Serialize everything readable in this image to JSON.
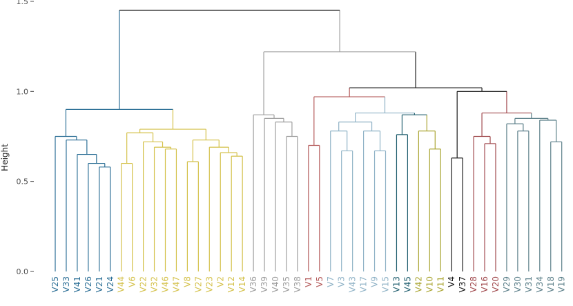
{
  "chart_data": {
    "type": "dendrogram",
    "title": "",
    "xlabel": "",
    "ylabel": "Height",
    "ylim": [
      0,
      1.5
    ],
    "yticks": [
      0.0,
      0.5,
      1.0,
      1.5
    ],
    "ytick_labels": [
      "0.0",
      "0.5",
      "1.0",
      "1.5"
    ],
    "grid": false,
    "leaves": [
      {
        "label": "V25",
        "group": "blue"
      },
      {
        "label": "V33",
        "group": "blue"
      },
      {
        "label": "V41",
        "group": "blue"
      },
      {
        "label": "V26",
        "group": "blue"
      },
      {
        "label": "V21",
        "group": "blue"
      },
      {
        "label": "V24",
        "group": "blue"
      },
      {
        "label": "V44",
        "group": "yellow"
      },
      {
        "label": "V6",
        "group": "yellow"
      },
      {
        "label": "V22",
        "group": "yellow"
      },
      {
        "label": "V32",
        "group": "yellow"
      },
      {
        "label": "V46",
        "group": "yellow"
      },
      {
        "label": "V47",
        "group": "yellow"
      },
      {
        "label": "V8",
        "group": "yellow"
      },
      {
        "label": "V27",
        "group": "yellow"
      },
      {
        "label": "V23",
        "group": "yellow"
      },
      {
        "label": "V2",
        "group": "yellow"
      },
      {
        "label": "V12",
        "group": "yellow"
      },
      {
        "label": "V14",
        "group": "yellow"
      },
      {
        "label": "V36",
        "group": "grey"
      },
      {
        "label": "V39",
        "group": "grey"
      },
      {
        "label": "V40",
        "group": "grey"
      },
      {
        "label": "V35",
        "group": "grey"
      },
      {
        "label": "V38",
        "group": "grey"
      },
      {
        "label": "V1",
        "group": "red"
      },
      {
        "label": "V5",
        "group": "red"
      },
      {
        "label": "V7",
        "group": "lightblue"
      },
      {
        "label": "V3",
        "group": "lightblue"
      },
      {
        "label": "V43",
        "group": "lightblue"
      },
      {
        "label": "V17",
        "group": "lightblue"
      },
      {
        "label": "V9",
        "group": "lightblue"
      },
      {
        "label": "V15",
        "group": "lightblue"
      },
      {
        "label": "V13",
        "group": "teal"
      },
      {
        "label": "V45",
        "group": "teal"
      },
      {
        "label": "V42",
        "group": "olive"
      },
      {
        "label": "V10",
        "group": "olive"
      },
      {
        "label": "V11",
        "group": "olive"
      },
      {
        "label": "V4",
        "group": "black"
      },
      {
        "label": "V37",
        "group": "black"
      },
      {
        "label": "V28",
        "group": "brownred"
      },
      {
        "label": "V16",
        "group": "brownred"
      },
      {
        "label": "V20",
        "group": "brownred"
      },
      {
        "label": "V29",
        "group": "slate"
      },
      {
        "label": "V30",
        "group": "slate"
      },
      {
        "label": "V31",
        "group": "slate"
      },
      {
        "label": "V34",
        "group": "slate"
      },
      {
        "label": "V18",
        "group": "slate"
      },
      {
        "label": "V19",
        "group": "slate"
      }
    ],
    "merges": [
      {
        "id": "b1",
        "left": "V21",
        "right": "V24",
        "height": 0.58,
        "color": "blue"
      },
      {
        "id": "b2",
        "left": "V26",
        "right": "b1",
        "height": 0.6,
        "color": "blue"
      },
      {
        "id": "b3",
        "left": "V41",
        "right": "b2",
        "height": 0.65,
        "color": "blue"
      },
      {
        "id": "b4",
        "left": "V33",
        "right": "b3",
        "height": 0.73,
        "color": "blue"
      },
      {
        "id": "b5",
        "left": "V25",
        "right": "b4",
        "height": 0.75,
        "color": "blue"
      },
      {
        "id": "y1",
        "left": "V12",
        "right": "V14",
        "height": 0.64,
        "color": "yellow"
      },
      {
        "id": "y2",
        "left": "V2",
        "right": "y1",
        "height": 0.66,
        "color": "yellow"
      },
      {
        "id": "y3",
        "left": "V23",
        "right": "y2",
        "height": 0.69,
        "color": "yellow"
      },
      {
        "id": "y4",
        "left": "V8",
        "right": "V27",
        "height": 0.61,
        "color": "yellow"
      },
      {
        "id": "y5",
        "left": "y4",
        "right": "y3",
        "height": 0.73,
        "color": "yellow"
      },
      {
        "id": "y6",
        "left": "V46",
        "right": "V47",
        "height": 0.68,
        "color": "yellow"
      },
      {
        "id": "y7",
        "left": "V32",
        "right": "y6",
        "height": 0.69,
        "color": "yellow"
      },
      {
        "id": "y8",
        "left": "V22",
        "right": "y7",
        "height": 0.72,
        "color": "yellow"
      },
      {
        "id": "y9",
        "left": "V44",
        "right": "V6",
        "height": 0.6,
        "color": "yellow"
      },
      {
        "id": "y10",
        "left": "y9",
        "right": "y8",
        "height": 0.77,
        "color": "yellow"
      },
      {
        "id": "y11",
        "left": "y10",
        "right": "y5",
        "height": 0.79,
        "color": "yellow"
      },
      {
        "id": "y12",
        "left": "b5",
        "right": "y11",
        "height": 0.9,
        "color": "blue"
      },
      {
        "id": "g1",
        "left": "V35",
        "right": "V38",
        "height": 0.75,
        "color": "grey"
      },
      {
        "id": "g2",
        "left": "V40",
        "right": "g1",
        "height": 0.83,
        "color": "grey"
      },
      {
        "id": "g3",
        "left": "V39",
        "right": "g2",
        "height": 0.85,
        "color": "grey"
      },
      {
        "id": "g4",
        "left": "V36",
        "right": "g3",
        "height": 0.87,
        "color": "grey"
      },
      {
        "id": "r1",
        "left": "V1",
        "right": "V5",
        "height": 0.7,
        "color": "red"
      },
      {
        "id": "lb1",
        "left": "V3",
        "right": "V43",
        "height": 0.67,
        "color": "lightblue"
      },
      {
        "id": "lb2",
        "left": "V7",
        "right": "lb1",
        "height": 0.78,
        "color": "lightblue"
      },
      {
        "id": "lb3",
        "left": "V9",
        "right": "V15",
        "height": 0.67,
        "color": "lightblue"
      },
      {
        "id": "lb4",
        "left": "V17",
        "right": "lb3",
        "height": 0.78,
        "color": "lightblue"
      },
      {
        "id": "lb5",
        "left": "lb2",
        "right": "lb4",
        "height": 0.83,
        "color": "lightblue"
      },
      {
        "id": "t1",
        "left": "V13",
        "right": "V45",
        "height": 0.76,
        "color": "teal"
      },
      {
        "id": "o1",
        "left": "V10",
        "right": "V11",
        "height": 0.68,
        "color": "olive"
      },
      {
        "id": "o2",
        "left": "V42",
        "right": "o1",
        "height": 0.78,
        "color": "olive"
      },
      {
        "id": "to1",
        "left": "t1",
        "right": "o2",
        "height": 0.87,
        "color": "teal"
      },
      {
        "id": "m1",
        "left": "lb5",
        "right": "to1",
        "height": 0.88,
        "color": "lightblue"
      },
      {
        "id": "m2",
        "left": "r1",
        "right": "m1",
        "height": 0.97,
        "color": "red"
      },
      {
        "id": "k1",
        "left": "V4",
        "right": "V37",
        "height": 0.63,
        "color": "black"
      },
      {
        "id": "br1",
        "left": "V16",
        "right": "V20",
        "height": 0.71,
        "color": "brownred"
      },
      {
        "id": "br2",
        "left": "V28",
        "right": "br1",
        "height": 0.75,
        "color": "brownred"
      },
      {
        "id": "s1",
        "left": "V30",
        "right": "V31",
        "height": 0.78,
        "color": "slate"
      },
      {
        "id": "s2",
        "left": "V29",
        "right": "s1",
        "height": 0.82,
        "color": "slate"
      },
      {
        "id": "s3",
        "left": "V18",
        "right": "V19",
        "height": 0.72,
        "color": "slate"
      },
      {
        "id": "s4",
        "left": "V34",
        "right": "s3",
        "height": 0.84,
        "color": "slate"
      },
      {
        "id": "s5",
        "left": "s2",
        "right": "s4",
        "height": 0.85,
        "color": "slate"
      },
      {
        "id": "br3",
        "left": "br2",
        "right": "s5",
        "height": 0.88,
        "color": "brownred"
      },
      {
        "id": "k2",
        "left": "k1",
        "right": "br3",
        "height": 1.0,
        "color": "black"
      },
      {
        "id": "k3",
        "left": "m2",
        "right": "k2",
        "height": 1.02,
        "color": "black"
      },
      {
        "id": "g5",
        "left": "g4",
        "right": "k3",
        "height": 1.22,
        "color": "grey"
      },
      {
        "id": "root",
        "left": "y12",
        "right": "g5",
        "height": 1.45,
        "color": "black"
      }
    ],
    "colors": {
      "blue": "#2c6f96",
      "yellow": "#d4c14a",
      "grey": "#9e9e9e",
      "red": "#b45a5a",
      "lightblue": "#8fb2c6",
      "teal": "#1f5e6e",
      "olive": "#aaa532",
      "black": "#1a1a1a",
      "brownred": "#a0494d",
      "slate": "#5b7f89"
    }
  }
}
